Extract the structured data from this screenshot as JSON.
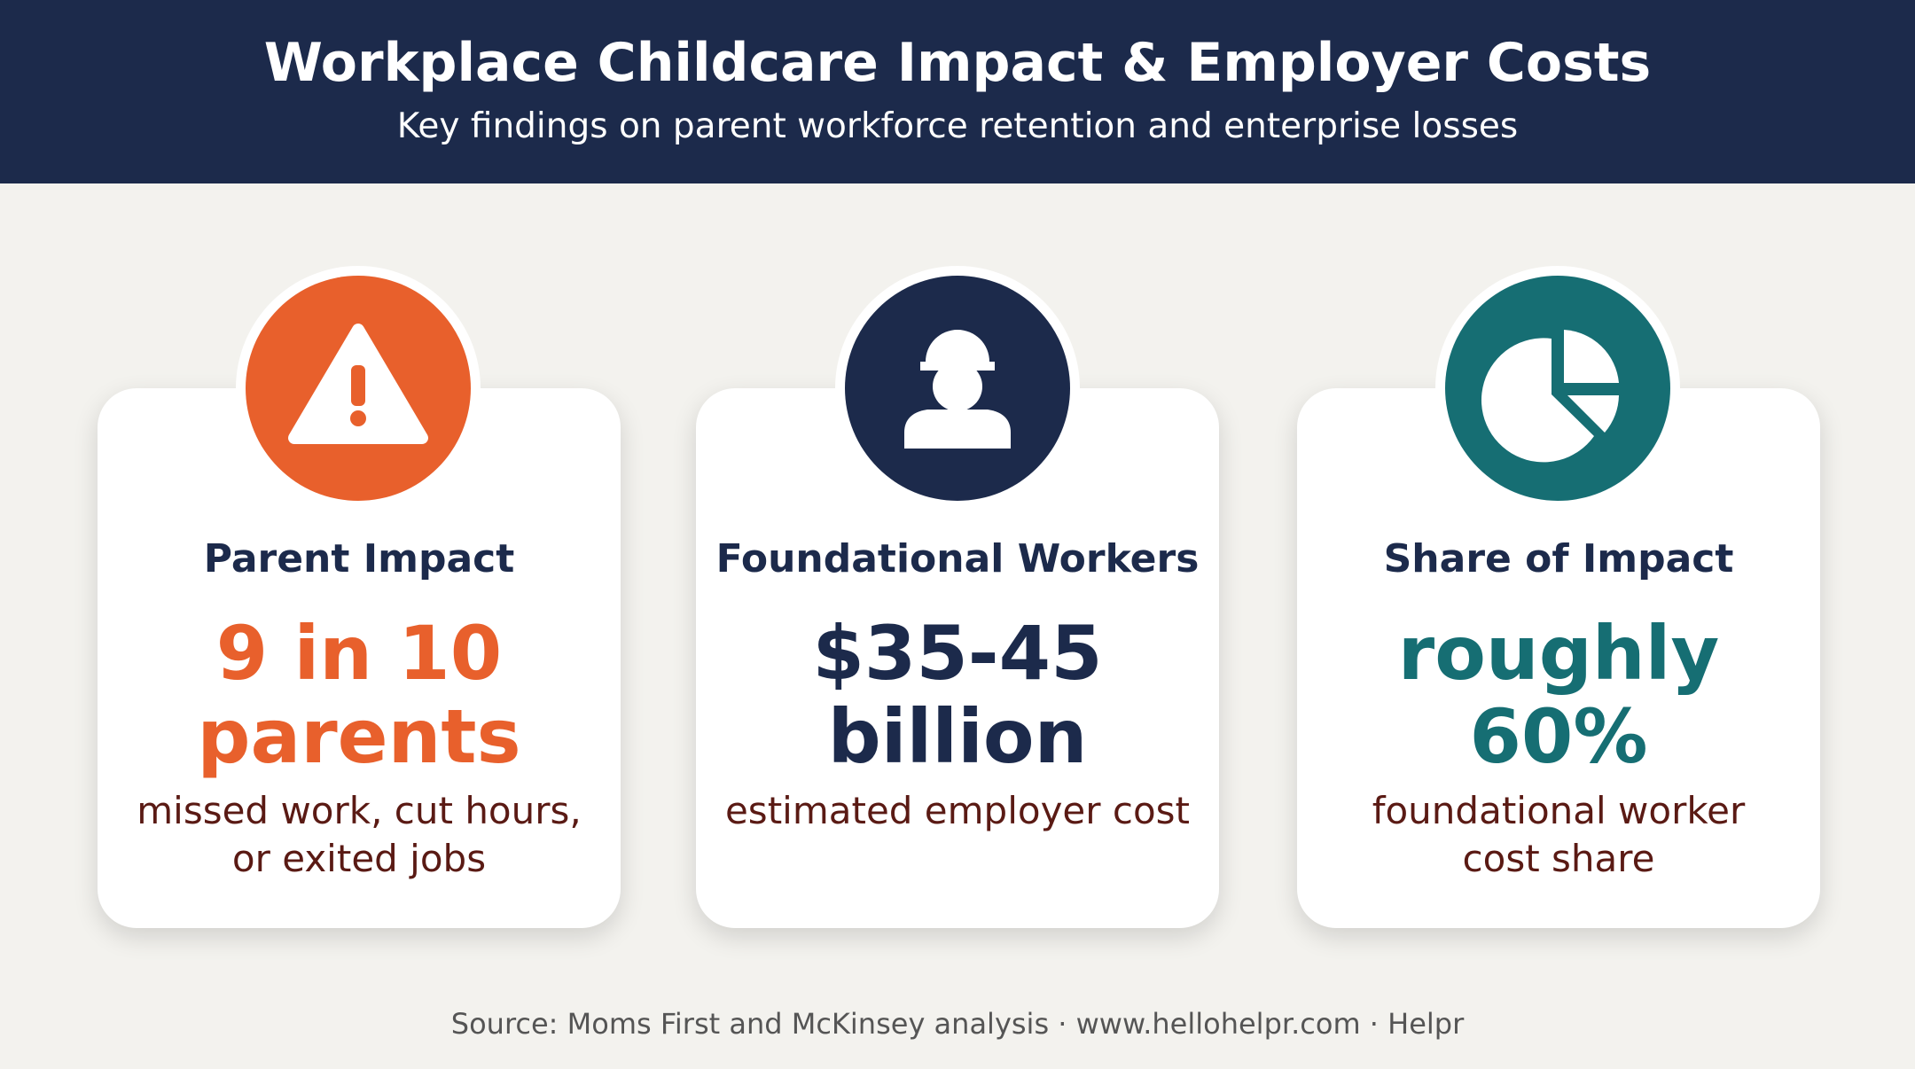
{
  "header": {
    "title": "Workplace Childcare Impact & Employer Costs",
    "subtitle": "Key findings on parent workforce retention and enterprise losses"
  },
  "cards": [
    {
      "title": "Parent Impact",
      "value": [
        "9 in 10",
        "parents"
      ],
      "description": [
        "missed work, cut hours,",
        "or exited jobs"
      ]
    },
    {
      "title": "Foundational Workers",
      "value": [
        "$35-45",
        "billion"
      ],
      "description": [
        "estimated employer cost"
      ]
    },
    {
      "title": "Share of Impact",
      "value": [
        "roughly",
        "60%"
      ],
      "description": [
        "foundational worker",
        "cost share"
      ]
    }
  ],
  "footer": {
    "source": "Source: Moms First and McKinsey analysis · www.hellohelpr.com · Helpr"
  }
}
